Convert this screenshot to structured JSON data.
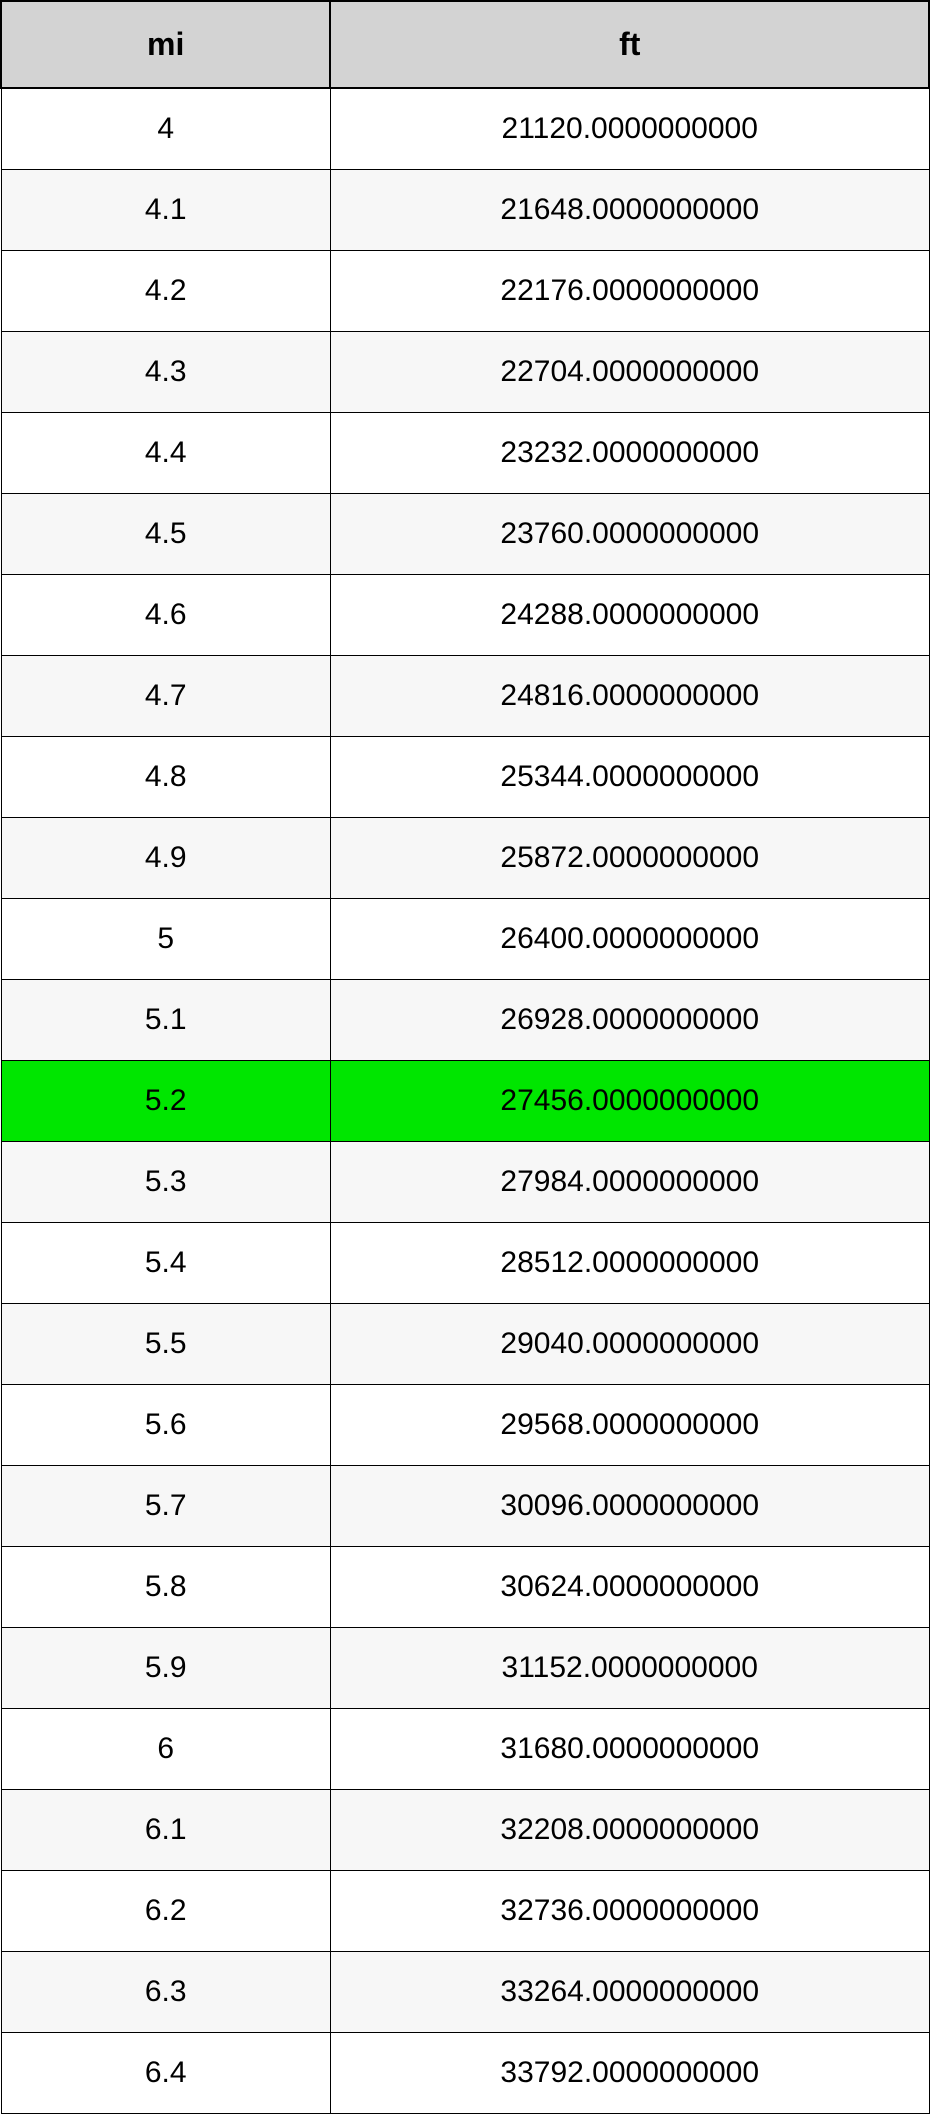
{
  "table": {
    "columns": [
      {
        "label": "mi",
        "width_pct": 35.5
      },
      {
        "label": "ft",
        "width_pct": 64.5
      }
    ],
    "header_bg": "#d3d3d3",
    "header_fontsize": 32,
    "cell_fontsize": 30,
    "border_color": "#000000",
    "text_color": "#000000",
    "row_bg_odd": "#ffffff",
    "row_bg_even": "#f7f7f7",
    "highlight_bg": "#00e600",
    "rows": [
      {
        "mi": "4",
        "ft": "21120.0000000000",
        "highlighted": false
      },
      {
        "mi": "4.1",
        "ft": "21648.0000000000",
        "highlighted": false
      },
      {
        "mi": "4.2",
        "ft": "22176.0000000000",
        "highlighted": false
      },
      {
        "mi": "4.3",
        "ft": "22704.0000000000",
        "highlighted": false
      },
      {
        "mi": "4.4",
        "ft": "23232.0000000000",
        "highlighted": false
      },
      {
        "mi": "4.5",
        "ft": "23760.0000000000",
        "highlighted": false
      },
      {
        "mi": "4.6",
        "ft": "24288.0000000000",
        "highlighted": false
      },
      {
        "mi": "4.7",
        "ft": "24816.0000000000",
        "highlighted": false
      },
      {
        "mi": "4.8",
        "ft": "25344.0000000000",
        "highlighted": false
      },
      {
        "mi": "4.9",
        "ft": "25872.0000000000",
        "highlighted": false
      },
      {
        "mi": "5",
        "ft": "26400.0000000000",
        "highlighted": false
      },
      {
        "mi": "5.1",
        "ft": "26928.0000000000",
        "highlighted": false
      },
      {
        "mi": "5.2",
        "ft": "27456.0000000000",
        "highlighted": true
      },
      {
        "mi": "5.3",
        "ft": "27984.0000000000",
        "highlighted": false
      },
      {
        "mi": "5.4",
        "ft": "28512.0000000000",
        "highlighted": false
      },
      {
        "mi": "5.5",
        "ft": "29040.0000000000",
        "highlighted": false
      },
      {
        "mi": "5.6",
        "ft": "29568.0000000000",
        "highlighted": false
      },
      {
        "mi": "5.7",
        "ft": "30096.0000000000",
        "highlighted": false
      },
      {
        "mi": "5.8",
        "ft": "30624.0000000000",
        "highlighted": false
      },
      {
        "mi": "5.9",
        "ft": "31152.0000000000",
        "highlighted": false
      },
      {
        "mi": "6",
        "ft": "31680.0000000000",
        "highlighted": false
      },
      {
        "mi": "6.1",
        "ft": "32208.0000000000",
        "highlighted": false
      },
      {
        "mi": "6.2",
        "ft": "32736.0000000000",
        "highlighted": false
      },
      {
        "mi": "6.3",
        "ft": "33264.0000000000",
        "highlighted": false
      },
      {
        "mi": "6.4",
        "ft": "33792.0000000000",
        "highlighted": false
      }
    ]
  }
}
